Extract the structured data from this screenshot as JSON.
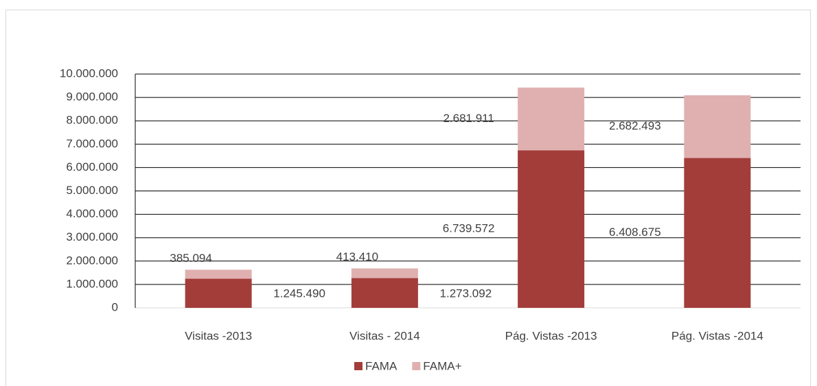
{
  "chart_data": {
    "type": "stacked_bar",
    "categories": [
      "Visitas -2013",
      "Visitas - 2014",
      "Pág. Vistas -2013",
      "Pág. Vistas -2014"
    ],
    "series": [
      {
        "name": "FAMA",
        "color": "#a33d3a",
        "values": [
          1245490,
          1273092,
          6739572,
          6408675
        ],
        "value_labels": [
          "1.245.490",
          "1.273.092",
          "6.739.572",
          "6.408.675"
        ]
      },
      {
        "name": "FAMA+",
        "color": "#e0b0b0",
        "values": [
          385094,
          413410,
          2681911,
          2682493
        ],
        "value_labels": [
          "385.094",
          "413.410",
          "2.681.911",
          "2.682.493"
        ]
      }
    ],
    "ylim": [
      0,
      10000000
    ],
    "yticks": [
      0,
      {
        "value": 1000000,
        "label": "1.000.000"
      },
      {
        "value": 2000000,
        "label": "2.000.000"
      },
      {
        "value": 3000000,
        "label": "3.000.000"
      },
      {
        "value": 4000000,
        "label": "4.000.000"
      },
      {
        "value": 5000000,
        "label": "5.000.000"
      },
      {
        "value": 6000000,
        "label": "6.000.000"
      },
      {
        "value": 7000000,
        "label": "7.000.000"
      },
      {
        "value": 8000000,
        "label": "8.000.000"
      },
      {
        "value": 9000000,
        "label": "9.000.000"
      },
      {
        "value": 10000000,
        "label": "10.000.000"
      }
    ],
    "grid": true,
    "legend": "bottom"
  }
}
